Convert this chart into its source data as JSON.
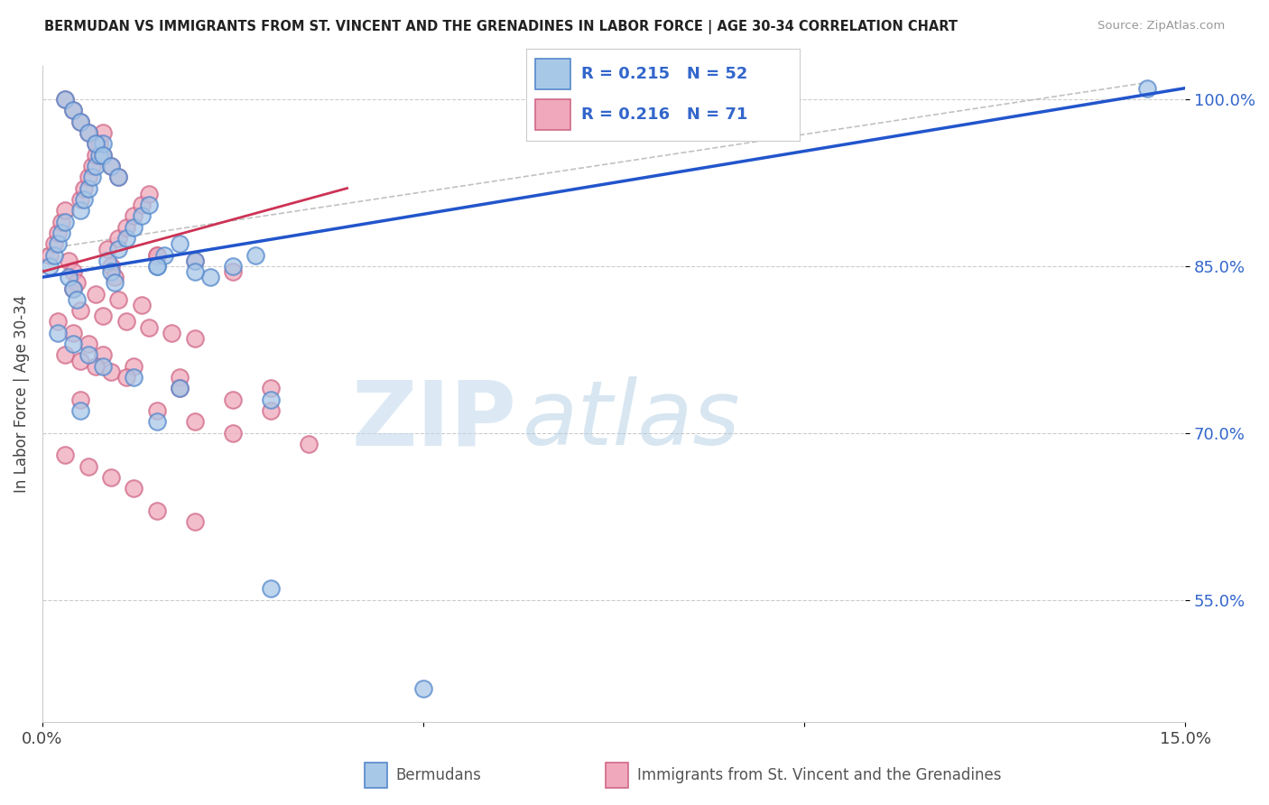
{
  "title": "BERMUDAN VS IMMIGRANTS FROM ST. VINCENT AND THE GRENADINES IN LABOR FORCE | AGE 30-34 CORRELATION CHART",
  "source": "Source: ZipAtlas.com",
  "ylabel": "In Labor Force | Age 30-34",
  "xlim": [
    0.0,
    15.0
  ],
  "ylim": [
    44.0,
    103.0
  ],
  "xtick_positions": [
    0.0,
    5.0,
    10.0,
    15.0
  ],
  "xticklabels": [
    "0.0%",
    "",
    "",
    "15.0%"
  ],
  "ytick_positions": [
    55.0,
    70.0,
    85.0,
    100.0
  ],
  "yticklabels": [
    "55.0%",
    "70.0%",
    "85.0%",
    "100.0%"
  ],
  "blue_face": "#a8c8e8",
  "blue_edge": "#5588cc",
  "pink_face": "#f0a8bc",
  "pink_edge": "#d06888",
  "blue_line_color": "#2255cc",
  "pink_line_color": "#cc3355",
  "gray_dash_color": "#bbbbbb",
  "R_blue": 0.215,
  "N_blue": 52,
  "R_pink": 0.216,
  "N_pink": 71,
  "watermark_zip": "ZIP",
  "watermark_atlas": "atlas",
  "legend_label_blue": "Bermudans",
  "legend_label_pink": "Immigrants from St. Vincent and the Grenadines",
  "blue_x": [
    0.1,
    0.15,
    0.2,
    0.25,
    0.3,
    0.35,
    0.4,
    0.45,
    0.5,
    0.55,
    0.6,
    0.65,
    0.7,
    0.75,
    0.8,
    0.85,
    0.9,
    0.95,
    1.0,
    1.1,
    1.2,
    1.3,
    1.4,
    1.5,
    1.6,
    1.8,
    2.0,
    2.2,
    2.5,
    0.3,
    0.4,
    0.5,
    0.6,
    0.7,
    0.8,
    0.9,
    1.0,
    1.5,
    2.0,
    2.8,
    0.2,
    0.4,
    0.6,
    0.8,
    1.2,
    1.8,
    3.0,
    0.5,
    1.5,
    14.5,
    3.0,
    5.0
  ],
  "blue_y": [
    85.0,
    86.0,
    87.0,
    88.0,
    89.0,
    84.0,
    83.0,
    82.0,
    90.0,
    91.0,
    92.0,
    93.0,
    94.0,
    95.0,
    96.0,
    85.5,
    84.5,
    83.5,
    86.5,
    87.5,
    88.5,
    89.5,
    90.5,
    85.0,
    86.0,
    87.0,
    85.5,
    84.0,
    85.0,
    100.0,
    99.0,
    98.0,
    97.0,
    96.0,
    95.0,
    94.0,
    93.0,
    85.0,
    84.5,
    86.0,
    79.0,
    78.0,
    77.0,
    76.0,
    75.0,
    74.0,
    73.0,
    72.0,
    71.0,
    101.0,
    56.0,
    47.0
  ],
  "pink_x": [
    0.1,
    0.15,
    0.2,
    0.25,
    0.3,
    0.35,
    0.4,
    0.45,
    0.5,
    0.55,
    0.6,
    0.65,
    0.7,
    0.75,
    0.8,
    0.85,
    0.9,
    0.95,
    1.0,
    1.1,
    1.2,
    1.3,
    1.4,
    1.5,
    0.3,
    0.4,
    0.5,
    0.6,
    0.7,
    0.8,
    0.9,
    1.0,
    1.5,
    2.0,
    2.5,
    0.2,
    0.4,
    0.6,
    0.8,
    1.2,
    1.8,
    3.0,
    0.5,
    1.5,
    2.0,
    2.5,
    3.5,
    0.3,
    0.6,
    0.9,
    1.2,
    0.4,
    0.7,
    1.0,
    1.3,
    0.5,
    0.8,
    1.1,
    1.4,
    1.7,
    2.0,
    0.3,
    0.5,
    0.7,
    0.9,
    1.1,
    1.8,
    2.5,
    3.0,
    1.5,
    2.0
  ],
  "pink_y": [
    86.0,
    87.0,
    88.0,
    89.0,
    90.0,
    85.5,
    84.5,
    83.5,
    91.0,
    92.0,
    93.0,
    94.0,
    95.0,
    96.0,
    97.0,
    86.5,
    85.0,
    84.0,
    87.5,
    88.5,
    89.5,
    90.5,
    91.5,
    86.0,
    100.0,
    99.0,
    98.0,
    97.0,
    96.0,
    95.0,
    94.0,
    93.0,
    86.0,
    85.5,
    84.5,
    80.0,
    79.0,
    78.0,
    77.0,
    76.0,
    75.0,
    74.0,
    73.0,
    72.0,
    71.0,
    70.0,
    69.0,
    68.0,
    67.0,
    66.0,
    65.0,
    83.0,
    82.5,
    82.0,
    81.5,
    81.0,
    80.5,
    80.0,
    79.5,
    79.0,
    78.5,
    77.0,
    76.5,
    76.0,
    75.5,
    75.0,
    74.0,
    73.0,
    72.0,
    63.0,
    62.0
  ]
}
